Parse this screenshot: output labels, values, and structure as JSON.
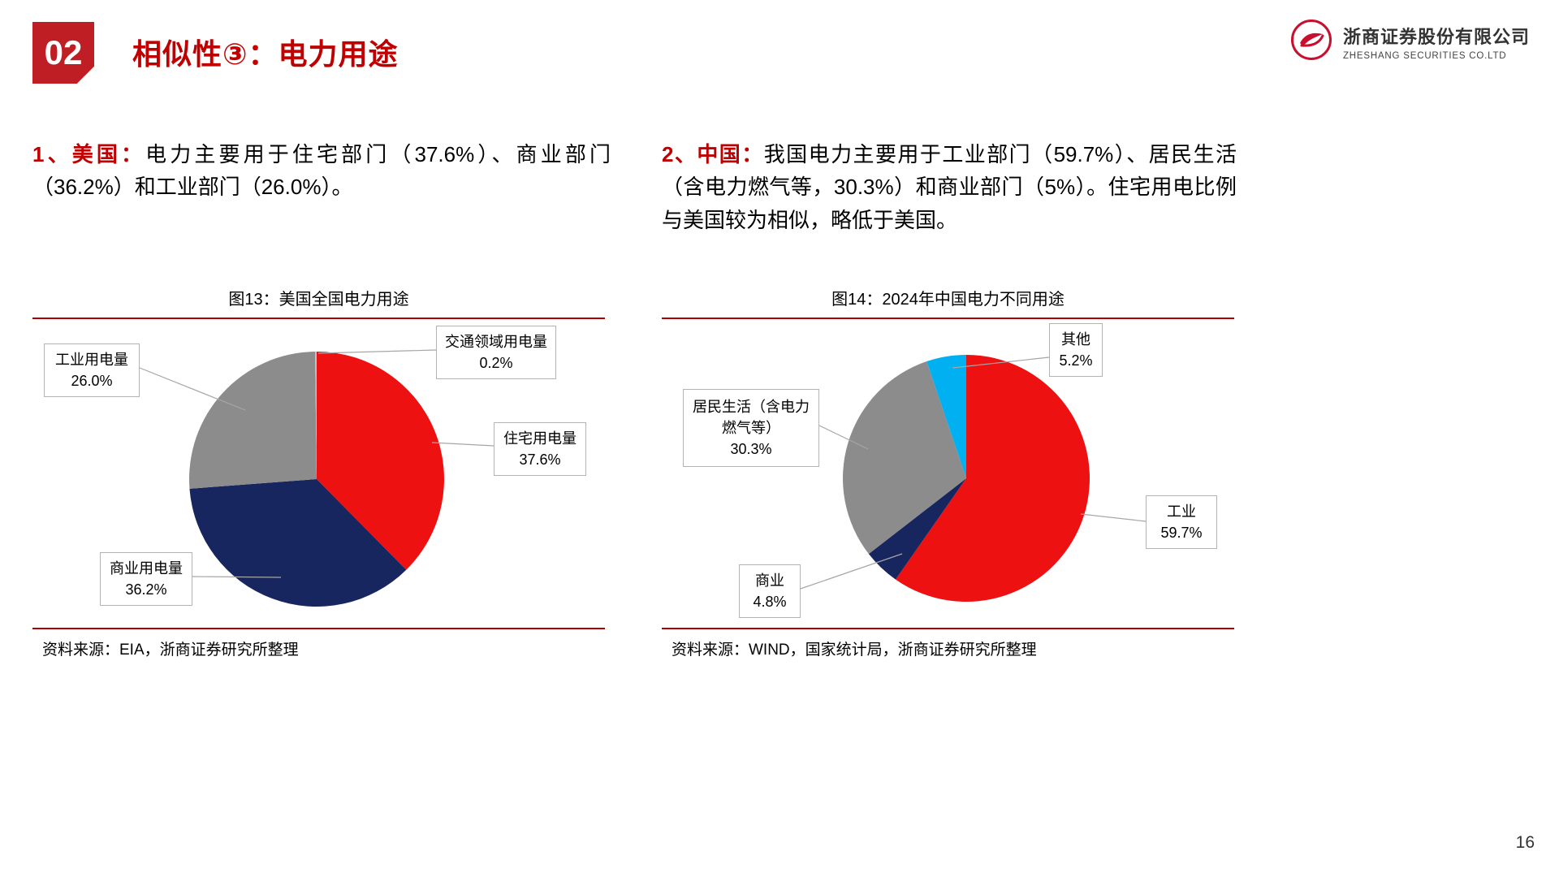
{
  "header": {
    "badge": "02",
    "title": "相似性③：电力用途"
  },
  "logo": {
    "company_cn": "浙商证券股份有限公司",
    "company_en": "ZHESHANG SECURITIES CO.LTD"
  },
  "paragraphs": {
    "us_prefix": "1、美国：",
    "us_body": "电力主要用于住宅部门（37.6%）、商业部门（36.2%）和工业部门（26.0%）。",
    "cn_prefix": "2、中国：",
    "cn_body": "我国电力主要用于工业部门（59.7%）、居民生活（含电力燃气等，30.3%）和商业部门（5%）。住宅用电比例与美国较为相似，略低于美国。"
  },
  "footer": {
    "page_number": "16"
  },
  "chart_data": [
    {
      "type": "pie",
      "title": "图13：美国全国电力用途",
      "labels": [
        "住宅用电量",
        "商业用电量",
        "工业用电量",
        "交通领域用电量"
      ],
      "values": [
        37.6,
        36.2,
        26.0,
        0.2
      ],
      "value_labels": [
        "37.6%",
        "36.2%",
        "26.0%",
        "0.2%"
      ],
      "colors": [
        "#ee1111",
        "#17265e",
        "#8c8c8c",
        "#c0c0c0"
      ],
      "legend_position": "callouts",
      "source": "资料来源：EIA，浙商证券研究所整理"
    },
    {
      "type": "pie",
      "title": "图14：2024年中国电力不同用途",
      "labels": [
        "工业",
        "商业",
        "居民生活（含电力燃气等）",
        "其他"
      ],
      "values": [
        59.7,
        4.8,
        30.3,
        5.2
      ],
      "value_labels": [
        "59.7%",
        "4.8%",
        "30.3%",
        "5.2%"
      ],
      "colors": [
        "#ee1111",
        "#17265e",
        "#8c8c8c",
        "#00b0f0"
      ],
      "legend_position": "callouts",
      "source": "资料来源：WIND，国家统计局，浙商证券研究所整理"
    }
  ]
}
